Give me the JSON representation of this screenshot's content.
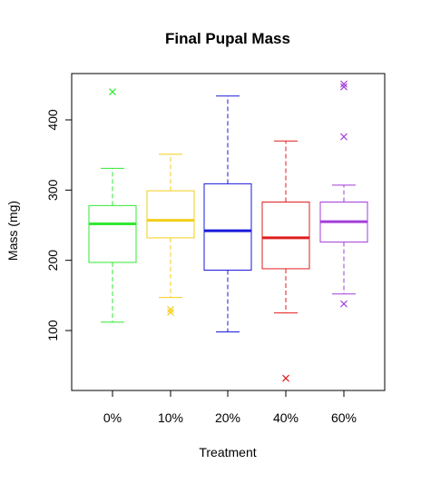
{
  "chart_data": {
    "type": "box",
    "title": "Final Pupal Mass",
    "xlabel": "Treatment",
    "ylabel": "Mass (mg)",
    "ylim": [
      10,
      460
    ],
    "yticks": [
      100,
      200,
      300,
      400
    ],
    "categories": [
      "0%",
      "10%",
      "20%",
      "40%",
      "60%"
    ],
    "boxes": [
      {
        "category": "0%",
        "color": "#32e832",
        "whisker_low": 112,
        "q1": 197,
        "median": 252,
        "q3": 278,
        "whisker_high": 331,
        "outliers": [
          440
        ]
      },
      {
        "category": "10%",
        "color": "#f2cf19",
        "whisker_low": 147,
        "q1": 232,
        "median": 257,
        "q3": 299,
        "whisker_high": 351,
        "outliers": [
          126,
          130
        ]
      },
      {
        "category": "20%",
        "color": "#1a1adb",
        "whisker_low": 98,
        "q1": 186,
        "median": 242,
        "q3": 309,
        "whisker_high": 434,
        "outliers": []
      },
      {
        "category": "40%",
        "color": "#e01d1d",
        "whisker_low": 125,
        "q1": 188,
        "median": 232,
        "q3": 283,
        "whisker_high": 370,
        "outliers": [
          32
        ]
      },
      {
        "category": "60%",
        "color": "#a23ed8",
        "whisker_low": 152,
        "q1": 226,
        "median": 255,
        "q3": 283,
        "whisker_high": 307,
        "outliers": [
          138,
          376,
          447,
          451
        ]
      }
    ],
    "grid": false,
    "legend": "none"
  }
}
